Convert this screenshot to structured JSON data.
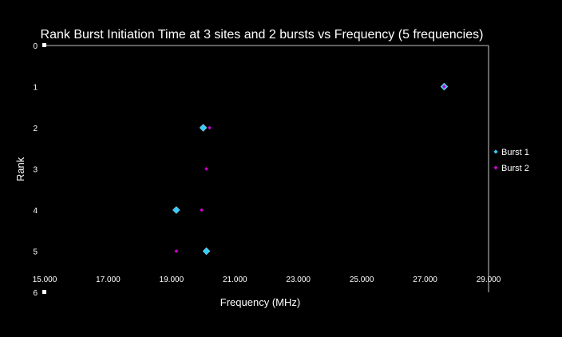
{
  "chart_data": {
    "type": "scatter",
    "title": "Rank Burst Initiation Time at 3 sites and 2 bursts vs Frequency (5 frequencies)",
    "xlabel": "Frequency (MHz)",
    "ylabel": "Rank",
    "xlim": [
      15,
      29
    ],
    "ylim": [
      0,
      6
    ],
    "y_inverted": true,
    "x_ticks": [
      "15.000",
      "17.000",
      "19.000",
      "21.000",
      "23.000",
      "25.000",
      "27.000",
      "29.000"
    ],
    "x_tick_values": [
      15,
      17,
      19,
      21,
      23,
      25,
      27,
      29
    ],
    "y_ticks": [
      "0",
      "1",
      "2",
      "3",
      "4",
      "5",
      "6"
    ],
    "y_tick_values": [
      0,
      1,
      2,
      3,
      4,
      5,
      6
    ],
    "grid": false,
    "legend_position": "right",
    "series": [
      {
        "name": "Burst 1",
        "color": "#33ccff",
        "marker": "diamond-large",
        "points": [
          {
            "x": 27.6,
            "y": 1
          },
          {
            "x": 20.0,
            "y": 2
          },
          {
            "x": 19.15,
            "y": 4
          },
          {
            "x": 20.1,
            "y": 5
          }
        ]
      },
      {
        "name": "Burst 2",
        "color": "#cc00cc",
        "marker": "diamond-small",
        "points": [
          {
            "x": 27.6,
            "y": 1
          },
          {
            "x": 20.2,
            "y": 2
          },
          {
            "x": 20.1,
            "y": 3
          },
          {
            "x": 19.95,
            "y": 4
          },
          {
            "x": 19.15,
            "y": 5
          }
        ]
      }
    ]
  }
}
